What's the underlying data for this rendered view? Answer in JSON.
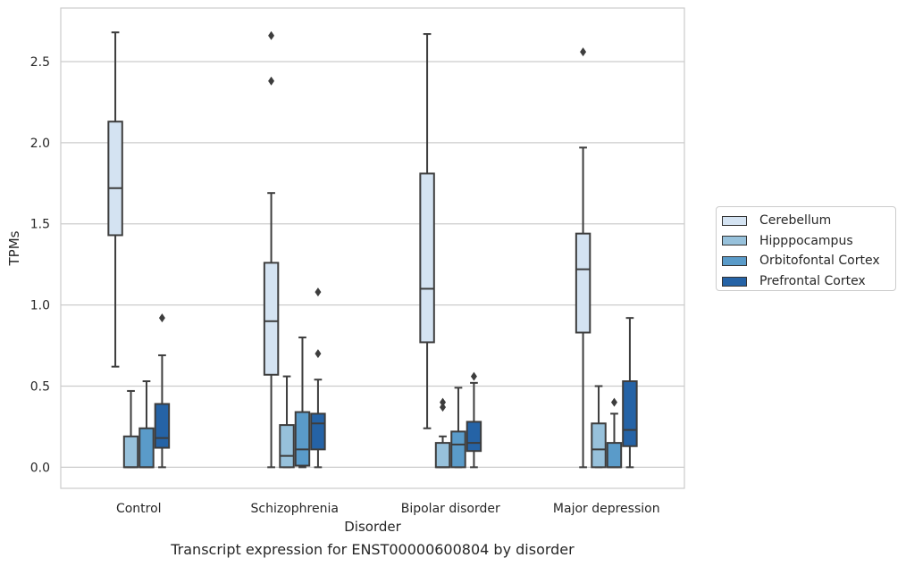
{
  "caption": "Transcript expression for ENST00000600804 by disorder",
  "chart_data": {
    "type": "boxplot",
    "title": "",
    "xlabel": "Disorder",
    "ylabel": "TPMs",
    "ylim": [
      -0.13,
      2.83
    ],
    "yticks": [
      0.0,
      0.5,
      1.0,
      1.5,
      2.0,
      2.5
    ],
    "ytick_labels": [
      "0.0",
      "0.5",
      "1.0",
      "1.5",
      "2.0",
      "2.5"
    ],
    "grid": "horizontal",
    "legend_position": "right",
    "categories": [
      "Control",
      "Schizophrenia",
      "Bipolar disorder",
      "Major depression"
    ],
    "series": [
      {
        "name": "Cerebellum",
        "color": "#d4e3f2",
        "boxes": [
          {
            "whisker_low": 0.62,
            "q1": 1.43,
            "median": 1.72,
            "q3": 2.13,
            "whisker_high": 2.68,
            "outliers": []
          },
          {
            "whisker_low": 0.0,
            "q1": 0.57,
            "median": 0.9,
            "q3": 1.26,
            "whisker_high": 1.69,
            "outliers": [
              2.38,
              2.66
            ]
          },
          {
            "whisker_low": 0.24,
            "q1": 0.77,
            "median": 1.1,
            "q3": 1.81,
            "whisker_high": 2.67,
            "outliers": []
          },
          {
            "whisker_low": 0.0,
            "q1": 0.83,
            "median": 1.22,
            "q3": 1.44,
            "whisker_high": 1.97,
            "outliers": [
              2.56
            ]
          }
        ]
      },
      {
        "name": "Hipppocampus",
        "color": "#97c1db",
        "boxes": [
          {
            "whisker_low": 0.0,
            "q1": 0.0,
            "median": 0.0,
            "q3": 0.19,
            "whisker_high": 0.47,
            "outliers": []
          },
          {
            "whisker_low": 0.0,
            "q1": 0.0,
            "median": 0.07,
            "q3": 0.26,
            "whisker_high": 0.56,
            "outliers": []
          },
          {
            "whisker_low": 0.0,
            "q1": 0.0,
            "median": 0.0,
            "q3": 0.15,
            "whisker_high": 0.19,
            "outliers": [
              0.37,
              0.4
            ]
          },
          {
            "whisker_low": 0.0,
            "q1": 0.0,
            "median": 0.11,
            "q3": 0.27,
            "whisker_high": 0.5,
            "outliers": []
          }
        ]
      },
      {
        "name": "Orbitofontal Cortex",
        "color": "#5a9bc9",
        "boxes": [
          {
            "whisker_low": 0.0,
            "q1": 0.0,
            "median": 0.0,
            "q3": 0.24,
            "whisker_high": 0.53,
            "outliers": []
          },
          {
            "whisker_low": 0.0,
            "q1": 0.01,
            "median": 0.11,
            "q3": 0.34,
            "whisker_high": 0.8,
            "outliers": []
          },
          {
            "whisker_low": 0.0,
            "q1": 0.0,
            "median": 0.14,
            "q3": 0.22,
            "whisker_high": 0.49,
            "outliers": []
          },
          {
            "whisker_low": 0.0,
            "q1": 0.0,
            "median": 0.0,
            "q3": 0.15,
            "whisker_high": 0.33,
            "outliers": [
              0.4
            ]
          }
        ]
      },
      {
        "name": "Prefrontal Cortex",
        "color": "#2563a6",
        "boxes": [
          {
            "whisker_low": 0.0,
            "q1": 0.12,
            "median": 0.18,
            "q3": 0.39,
            "whisker_high": 0.69,
            "outliers": [
              0.92
            ]
          },
          {
            "whisker_low": 0.0,
            "q1": 0.11,
            "median": 0.27,
            "q3": 0.33,
            "whisker_high": 0.54,
            "outliers": [
              0.7,
              1.08
            ]
          },
          {
            "whisker_low": 0.0,
            "q1": 0.1,
            "median": 0.15,
            "q3": 0.28,
            "whisker_high": 0.52,
            "outliers": [
              0.56
            ]
          },
          {
            "whisker_low": 0.0,
            "q1": 0.13,
            "median": 0.23,
            "q3": 0.53,
            "whisker_high": 0.92,
            "outliers": []
          }
        ]
      }
    ]
  }
}
